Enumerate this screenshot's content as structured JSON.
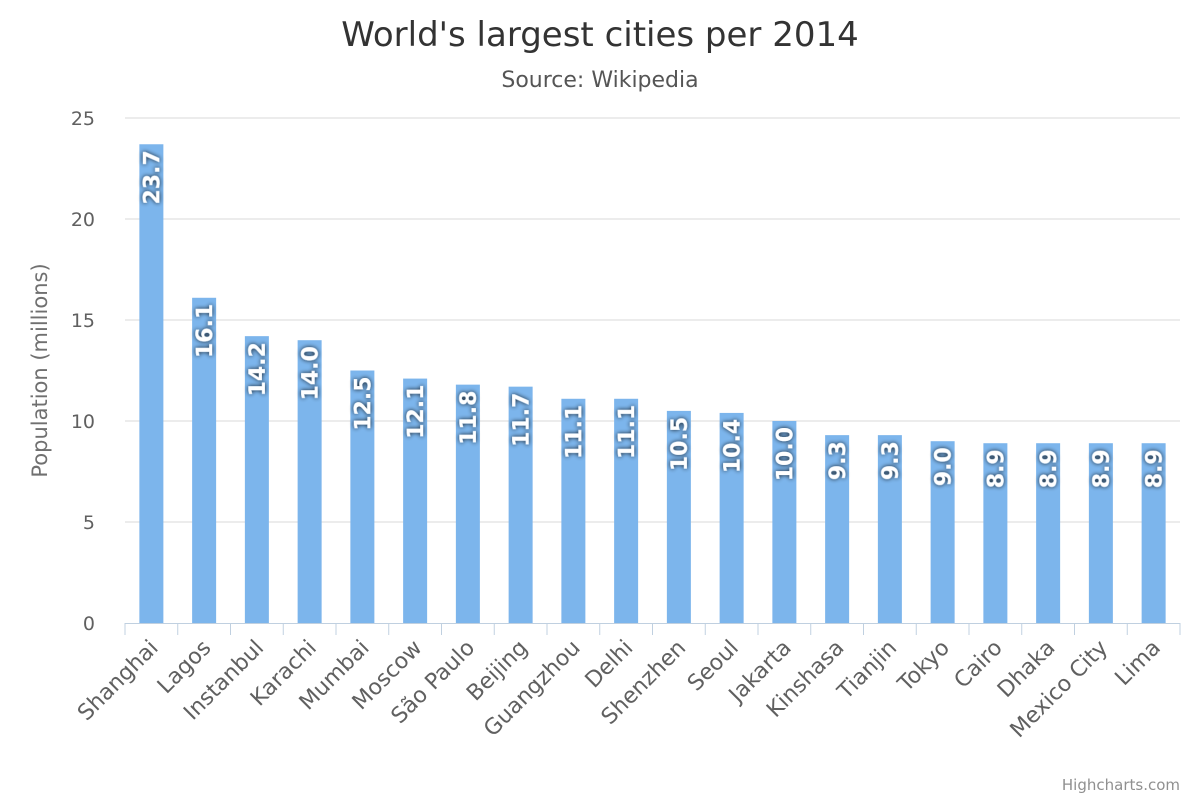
{
  "chart_data": {
    "type": "bar",
    "title": "World's largest cities per 2014",
    "subtitle": "Source: Wikipedia",
    "xlabel": "",
    "ylabel": "Population (millions)",
    "ylim": [
      0,
      25
    ],
    "yticks": [
      0,
      5,
      10,
      15,
      20,
      25
    ],
    "grid": true,
    "legend": "none",
    "bar_color": "#7cb5ec",
    "categories": [
      "Shanghai",
      "Lagos",
      "Instanbul",
      "Karachi",
      "Mumbai",
      "Moscow",
      "São Paulo",
      "Beijing",
      "Guangzhou",
      "Delhi",
      "Shenzhen",
      "Seoul",
      "Jakarta",
      "Kinshasa",
      "Tianjin",
      "Tokyo",
      "Cairo",
      "Dhaka",
      "Mexico City",
      "Lima"
    ],
    "values": [
      23.7,
      16.1,
      14.2,
      14.0,
      12.5,
      12.1,
      11.8,
      11.7,
      11.1,
      11.1,
      10.5,
      10.4,
      10.0,
      9.3,
      9.3,
      9.0,
      8.9,
      8.9,
      8.9,
      8.9
    ],
    "data_labels": [
      "23.7",
      "16.1",
      "14.2",
      "14.0",
      "12.5",
      "12.1",
      "11.8",
      "11.7",
      "11.1",
      "11.1",
      "10.5",
      "10.4",
      "10.0",
      "9.3",
      "9.3",
      "9.0",
      "8.9",
      "8.9",
      "8.9",
      "8.9"
    ]
  },
  "credits": "Highcharts.com"
}
